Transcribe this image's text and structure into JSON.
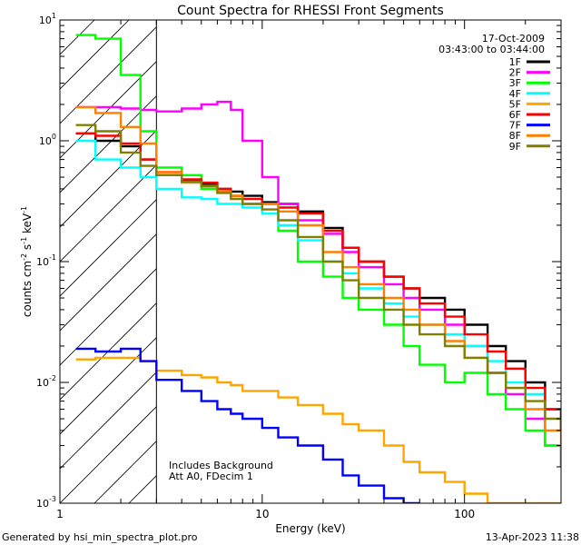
{
  "chart_data": {
    "type": "line",
    "title": "Count Spectra for RHESSI Front Segments",
    "xlabel": "Energy (keV)",
    "ylabel_parts": [
      "counts cm",
      "-2",
      " s",
      "-1",
      " keV",
      "-1"
    ],
    "xscale": "log",
    "yscale": "log",
    "xlim": [
      1,
      300
    ],
    "ylim": [
      0.001,
      10
    ],
    "x_ticks": [
      {
        "value": 1,
        "label": "1"
      },
      {
        "value": 10,
        "label": "10"
      },
      {
        "value": 100,
        "label": "100"
      }
    ],
    "y_ticks": [
      {
        "value": 0.001,
        "base": "10",
        "exp": "-3"
      },
      {
        "value": 0.01,
        "base": "10",
        "exp": "-2"
      },
      {
        "value": 0.1,
        "base": "10",
        "exp": "-1"
      },
      {
        "value": 1,
        "base": "10",
        "exp": "0"
      },
      {
        "value": 10,
        "base": "10",
        "exp": "1"
      }
    ],
    "shaded_region_x": [
      1,
      3
    ],
    "info": {
      "date": "17-Oct-2009",
      "time_range": "03:43:00 to 03:44:00"
    },
    "annotations": [
      "Includes Background",
      "Att A0, FDecim 1"
    ],
    "legend_position": "top-right",
    "series": [
      {
        "name": "1F",
        "color": "#000000",
        "x": [
          1.2,
          1.5,
          2,
          2.5,
          3,
          4,
          5,
          6,
          7,
          8,
          10,
          12,
          15,
          20,
          25,
          30,
          40,
          50,
          60,
          80,
          100,
          130,
          160,
          200,
          250,
          300
        ],
        "y": [
          1.15,
          1.0,
          0.9,
          0.7,
          0.52,
          0.47,
          0.44,
          0.4,
          0.38,
          0.35,
          0.31,
          0.3,
          0.26,
          0.19,
          0.13,
          0.1,
          0.075,
          0.06,
          0.05,
          0.04,
          0.03,
          0.02,
          0.015,
          0.01,
          0.006,
          0.004
        ]
      },
      {
        "name": "2F",
        "color": "#ff00ff",
        "x": [
          1.2,
          1.5,
          2,
          2.5,
          3,
          4,
          5,
          6,
          7,
          8,
          10,
          12,
          15,
          20,
          25,
          30,
          40,
          50,
          60,
          80,
          100,
          130,
          160,
          200,
          250,
          300
        ],
        "y": [
          1.9,
          1.9,
          1.85,
          1.8,
          1.75,
          1.85,
          2.0,
          2.1,
          1.8,
          1.0,
          0.5,
          0.3,
          0.22,
          0.17,
          0.12,
          0.09,
          0.065,
          0.05,
          0.04,
          0.03,
          0.02,
          0.012,
          0.008,
          0.005,
          0.003,
          0.002
        ]
      },
      {
        "name": "3F",
        "color": "#00ff00",
        "x": [
          1.2,
          1.5,
          2,
          2.5,
          3,
          4,
          5,
          6,
          7,
          8,
          10,
          12,
          15,
          20,
          25,
          30,
          40,
          50,
          60,
          80,
          100,
          130,
          160,
          200,
          250,
          300
        ],
        "y": [
          7.5,
          7.0,
          3.5,
          1.2,
          0.6,
          0.52,
          0.4,
          0.38,
          0.35,
          0.3,
          0.25,
          0.18,
          0.1,
          0.075,
          0.05,
          0.04,
          0.03,
          0.02,
          0.014,
          0.01,
          0.012,
          0.008,
          0.006,
          0.004,
          0.003,
          0.002
        ]
      },
      {
        "name": "4F",
        "color": "#00ffff",
        "x": [
          1.2,
          1.5,
          2,
          2.5,
          3,
          4,
          5,
          6,
          7,
          8,
          10,
          12,
          15,
          20,
          25,
          30,
          40,
          50,
          60,
          80,
          100,
          130,
          160,
          200,
          250,
          300
        ],
        "y": [
          1.0,
          0.7,
          0.6,
          0.5,
          0.4,
          0.34,
          0.33,
          0.3,
          0.3,
          0.28,
          0.25,
          0.2,
          0.15,
          0.1,
          0.08,
          0.06,
          0.045,
          0.035,
          0.03,
          0.025,
          0.02,
          0.015,
          0.01,
          0.008,
          0.006,
          0.004
        ]
      },
      {
        "name": "5F",
        "color": "#ffa500",
        "x": [
          1.2,
          1.5,
          2,
          2.5,
          3,
          4,
          5,
          6,
          7,
          8,
          10,
          12,
          15,
          20,
          25,
          30,
          40,
          50,
          60,
          80,
          100,
          130,
          160,
          200,
          250,
          300
        ],
        "y": [
          0.0155,
          0.016,
          0.016,
          0.015,
          0.0125,
          0.0115,
          0.011,
          0.01,
          0.0095,
          0.0085,
          0.0085,
          0.0075,
          0.0065,
          0.0055,
          0.0045,
          0.004,
          0.003,
          0.0022,
          0.0018,
          0.0015,
          0.0012,
          0.001,
          0.001,
          0.001,
          0.001,
          0.001
        ]
      },
      {
        "name": "6F",
        "color": "#ff0000",
        "x": [
          1.2,
          1.5,
          2,
          2.5,
          3,
          4,
          5,
          6,
          7,
          8,
          10,
          12,
          15,
          20,
          25,
          30,
          40,
          50,
          60,
          80,
          100,
          130,
          160,
          200,
          250,
          300
        ],
        "y": [
          1.15,
          1.1,
          0.95,
          0.7,
          0.55,
          0.48,
          0.45,
          0.4,
          0.35,
          0.33,
          0.3,
          0.28,
          0.25,
          0.18,
          0.13,
          0.1,
          0.075,
          0.06,
          0.045,
          0.035,
          0.025,
          0.018,
          0.013,
          0.009,
          0.006,
          0.004
        ]
      },
      {
        "name": "7F",
        "color": "#0000ff",
        "x": [
          1.2,
          1.5,
          2,
          2.5,
          3,
          4,
          5,
          6,
          7,
          8,
          10,
          12,
          15,
          20,
          25,
          30,
          40,
          50,
          60
        ],
        "y": [
          0.019,
          0.018,
          0.019,
          0.015,
          0.0105,
          0.0085,
          0.007,
          0.006,
          0.0055,
          0.005,
          0.0042,
          0.0035,
          0.003,
          0.0023,
          0.0017,
          0.0014,
          0.0011,
          0.001,
          0.001
        ]
      },
      {
        "name": "8F",
        "color": "#ff7f00",
        "x": [
          1.2,
          1.5,
          2,
          2.5,
          3,
          4,
          5,
          6,
          7,
          8,
          10,
          12,
          15,
          20,
          25,
          30,
          40,
          50,
          60,
          80,
          100,
          130,
          160,
          200,
          250,
          300
        ],
        "y": [
          1.9,
          1.7,
          1.3,
          0.95,
          0.55,
          0.45,
          0.42,
          0.38,
          0.35,
          0.3,
          0.3,
          0.26,
          0.2,
          0.12,
          0.09,
          0.065,
          0.05,
          0.04,
          0.03,
          0.022,
          0.016,
          0.012,
          0.009,
          0.006,
          0.004,
          0.003
        ]
      },
      {
        "name": "9F",
        "color": "#808000",
        "x": [
          1.2,
          1.5,
          2,
          2.5,
          3,
          4,
          5,
          6,
          7,
          8,
          10,
          12,
          15,
          20,
          25,
          30,
          40,
          50,
          60,
          80,
          100,
          130,
          160,
          200,
          250,
          300
        ],
        "y": [
          1.35,
          1.2,
          0.8,
          0.62,
          0.52,
          0.46,
          0.42,
          0.37,
          0.33,
          0.3,
          0.27,
          0.22,
          0.16,
          0.1,
          0.07,
          0.05,
          0.04,
          0.03,
          0.025,
          0.02,
          0.016,
          0.012,
          0.009,
          0.007,
          0.005,
          0.004
        ]
      }
    ]
  },
  "footer": {
    "generated_by": "Generated by hsi_min_spectra_plot.pro",
    "timestamp": "13-Apr-2023 11:38"
  }
}
